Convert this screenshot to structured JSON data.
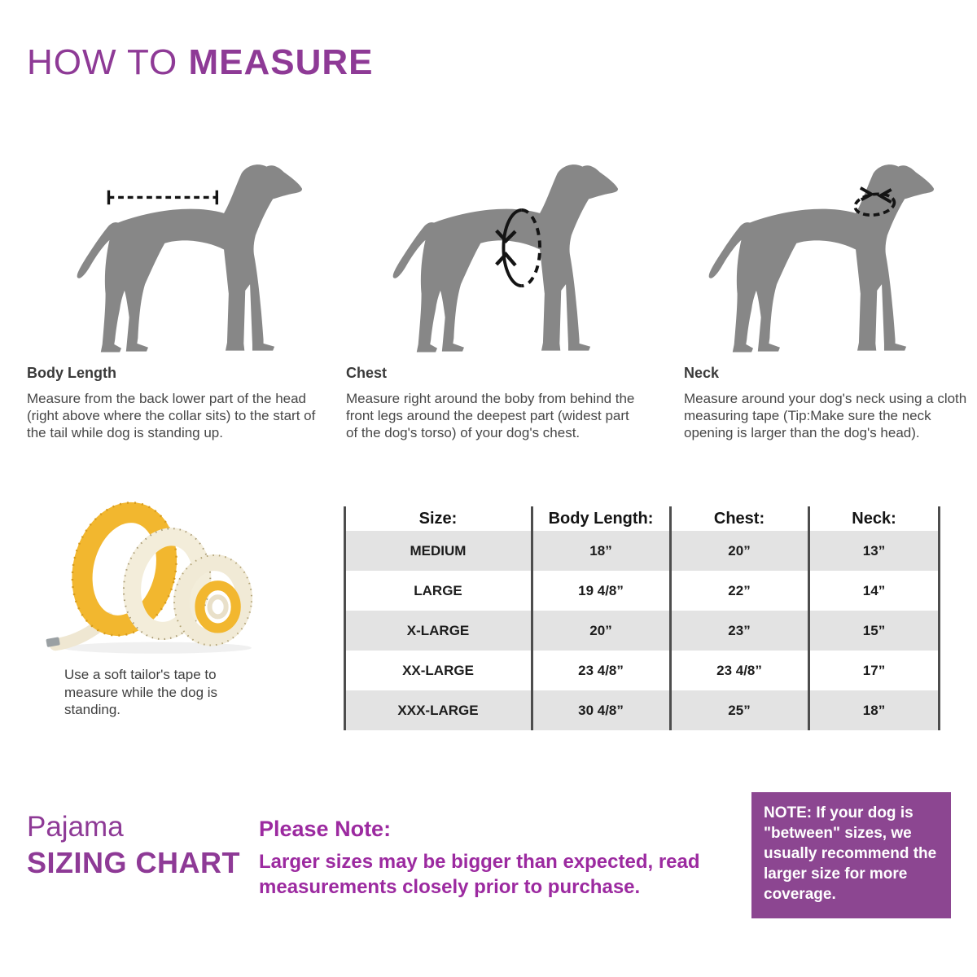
{
  "title": {
    "light": "HOW TO ",
    "bold": "MEASURE"
  },
  "sections": [
    {
      "heading": "Body Length",
      "text": "Measure from the back lower part of the head (right above where the collar sits) to the start of the tail while dog is standing up.",
      "figure": "dog-silhouette-with-back-length-measure-line"
    },
    {
      "heading": "Chest",
      "text": "Measure right around the boby from behind the front legs around the deepest part (widest part of the dog's torso) of your dog's chest.",
      "figure": "dog-silhouette-with-chest-girth-ellipse"
    },
    {
      "heading": "Neck",
      "text": "Measure around your dog's neck using a cloth measuring tape (Tip:Make sure the neck opening is larger than the dog's head).",
      "figure": "dog-silhouette-with-neck-girth-ellipse"
    }
  ],
  "tape_note": "Use a soft tailor's tape to measure while the dog is standing.",
  "size_table": {
    "headers": [
      "Size:",
      "Body Length:",
      "Chest:",
      "Neck:"
    ],
    "rows": [
      [
        "MEDIUM",
        "18”",
        "20”",
        "13”"
      ],
      [
        "LARGE",
        "19 4/8”",
        "22”",
        "14”"
      ],
      [
        "X-LARGE",
        "20”",
        "23”",
        "15”"
      ],
      [
        "XX-LARGE",
        "23 4/8”",
        "23 4/8”",
        "17”"
      ],
      [
        "XXX-LARGE",
        "30 4/8”",
        "25”",
        "18”"
      ]
    ]
  },
  "footer": {
    "product_line1": "Pajama",
    "product_line2": "SIZING CHART",
    "note_heading": "Please Note:",
    "note_body": "Larger sizes may be bigger than expected, read measurements closely prior to purchase.",
    "note_box": "NOTE: If your dog is \"between\" sizes, we usually recommend the larger size for more coverage."
  },
  "colors": {
    "title_purple": "#8e3a96",
    "note_magenta": "#9c2aa0",
    "note_box_bg": "#8c4691",
    "dog_gray": "#878787",
    "table_stripe_gray": "#e3e3e3",
    "table_line_gray": "#4d4d4d"
  }
}
